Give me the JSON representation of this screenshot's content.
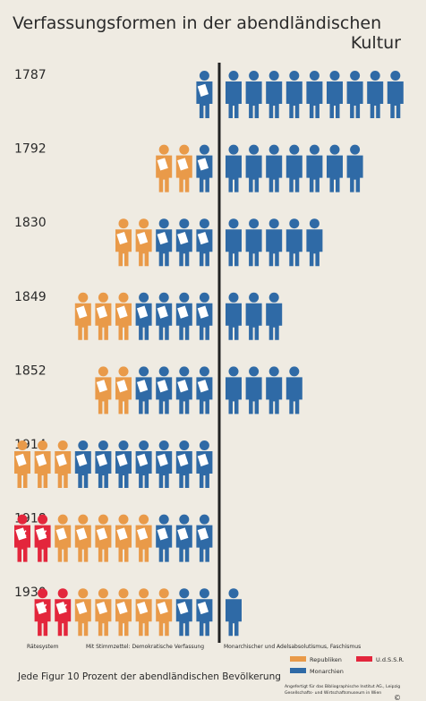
{
  "chart_data": {
    "type": "isotype",
    "title": "Verfassungsformen in der abendländischen",
    "title_line2": "Kultur",
    "categories": [
      "1787",
      "1792",
      "1830",
      "1849",
      "1852",
      "1914",
      "1918",
      "1930"
    ],
    "series": [
      {
        "name": "Rätesystem",
        "color": "#e3263c",
        "symbol": "soviet",
        "values": [
          0,
          0,
          0,
          0,
          0,
          0,
          2,
          2
        ]
      },
      {
        "name": "Mit Stimmzettel: Demokratische Verfassung",
        "stacks": [
          {
            "color": "#e99a49",
            "values": [
              0,
              2,
              2,
              3,
              2,
              3,
              5,
              5
            ]
          },
          {
            "color": "#2f6aa6",
            "values": [
              1,
              1,
              3,
              4,
              4,
              7,
              3,
              2
            ]
          }
        ]
      },
      {
        "name": "Monarchischer und Adelsabsolutismus, Faschismus",
        "color": "#2f6aa6",
        "values": [
          9,
          7,
          5,
          3,
          4,
          0,
          0,
          1
        ]
      }
    ],
    "legend": [
      {
        "name": "Republiken",
        "color": "#e99a49"
      },
      {
        "name": "Monarchien",
        "color": "#2f6aa6"
      },
      {
        "name": "U.d.S.S.R.",
        "color": "#e3263c"
      }
    ],
    "unit_note": "Jede Figur 10 Prozent der abendländischen Bevölkerung",
    "credit_line1": "Angefertigt für das Bibliographische Institut AG., Leipzig",
    "credit_line2": "Gesellschafts- und Wirtschaftsmuseum in Wien",
    "copyright": "©"
  }
}
